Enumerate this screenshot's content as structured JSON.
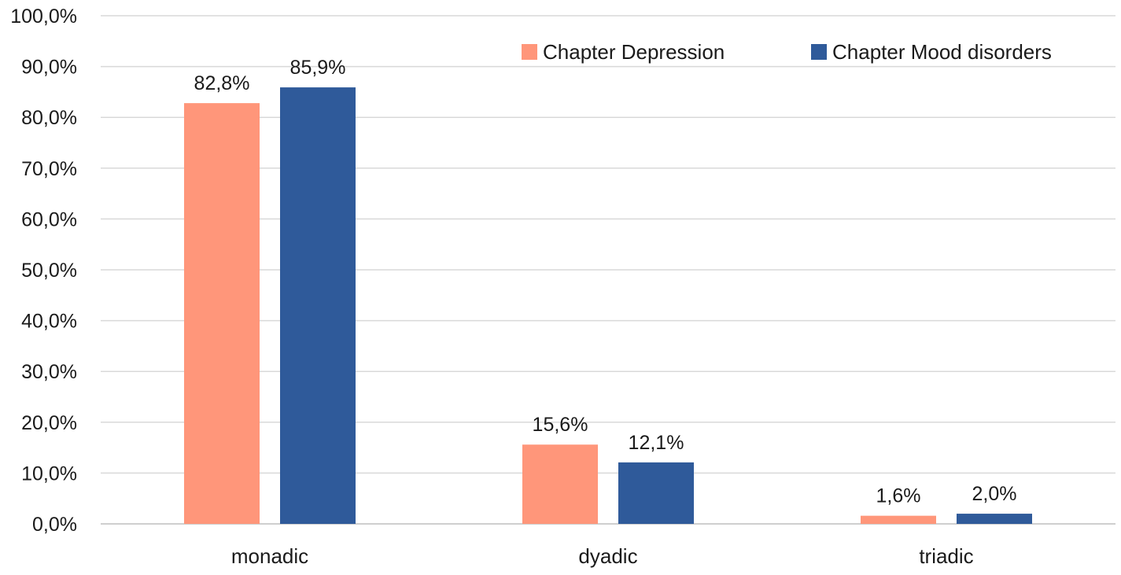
{
  "chart_data": {
    "type": "bar",
    "categories": [
      "monadic",
      "dyadic",
      "triadic"
    ],
    "series": [
      {
        "name": "Chapter Depression",
        "values": [
          82.8,
          15.6,
          1.6
        ],
        "labels": [
          "82,8%",
          "15,6%",
          "1,6%"
        ],
        "color": "#FF967A"
      },
      {
        "name": "Chapter Mood disorders",
        "values": [
          85.9,
          12.1,
          2.0
        ],
        "labels": [
          "85,9%",
          "12,1%",
          "2,0%"
        ],
        "color": "#2F5A9A"
      }
    ],
    "yticks": [
      "0,0%",
      "10,0%",
      "20,0%",
      "30,0%",
      "40,0%",
      "50,0%",
      "60,0%",
      "70,0%",
      "80,0%",
      "90,0%",
      "100,0%"
    ],
    "ylim": [
      0,
      100
    ],
    "grid": true,
    "legend_position": "top-right"
  }
}
